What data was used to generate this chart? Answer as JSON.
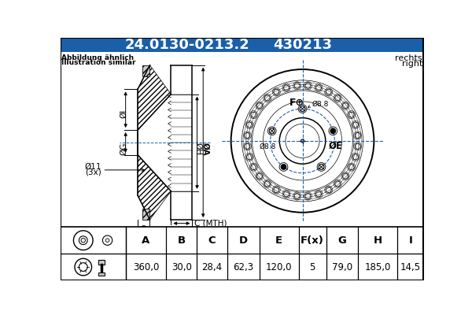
{
  "title_part1": "24.0130-0213.2",
  "title_part2": "430213",
  "title_bg": "#1a5fa8",
  "title_fg": "#ffffff",
  "note_line1": "Abbildung ähnlich",
  "note_line2": "Illustration similar",
  "rechts_line1": "rechts",
  "rechts_line2": "right",
  "table_headers": [
    "A",
    "B",
    "C",
    "D",
    "E",
    "F(x)",
    "G",
    "H",
    "I"
  ],
  "table_values": [
    "360,0",
    "30,0",
    "28,4",
    "62,3",
    "120,0",
    "5",
    "79,0",
    "185,0",
    "14,5"
  ],
  "bg_color": "#ffffff",
  "crosshair_color": "#2060b0",
  "title_fontsize": 13,
  "note_fontsize": 6.5,
  "dim_fontsize": 7.5
}
